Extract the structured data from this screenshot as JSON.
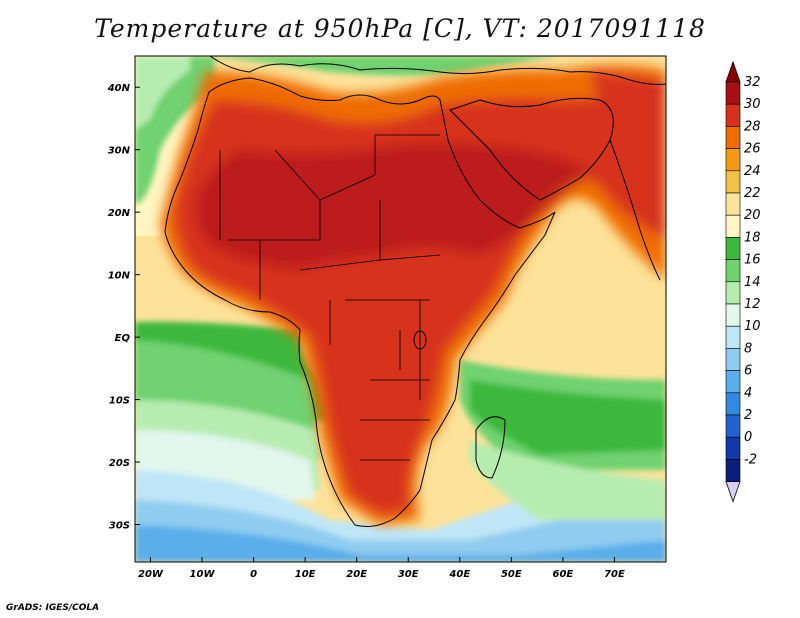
{
  "title": "Temperature at 950hPa [C], VT: 2017091118",
  "credit": "GrADS: IGES/COLA",
  "map": {
    "lon_range": [
      -23,
      80
    ],
    "lat_range": [
      -36,
      45
    ],
    "lon_ticks": [
      {
        "lon": -20,
        "label": "20W"
      },
      {
        "lon": -10,
        "label": "10W"
      },
      {
        "lon": 0,
        "label": "0"
      },
      {
        "lon": 10,
        "label": "10E"
      },
      {
        "lon": 20,
        "label": "20E"
      },
      {
        "lon": 30,
        "label": "30E"
      },
      {
        "lon": 40,
        "label": "40E"
      },
      {
        "lon": 50,
        "label": "50E"
      },
      {
        "lon": 60,
        "label": "60E"
      },
      {
        "lon": 70,
        "label": "70E"
      }
    ],
    "lat_ticks": [
      {
        "lat": 40,
        "label": "40N"
      },
      {
        "lat": 30,
        "label": "30N"
      },
      {
        "lat": 20,
        "label": "20N"
      },
      {
        "lat": 10,
        "label": "10N"
      },
      {
        "lat": 0,
        "label": "EQ"
      },
      {
        "lat": -10,
        "label": "10S"
      },
      {
        "lat": -20,
        "label": "20S"
      },
      {
        "lat": -30,
        "label": "30S"
      }
    ]
  },
  "colorbar": {
    "levels": [
      "32",
      "30",
      "28",
      "26",
      "24",
      "22",
      "20",
      "18",
      "16",
      "14",
      "12",
      "10",
      "8",
      "6",
      "4",
      "2",
      "0",
      "-2"
    ],
    "colors": {
      "c32": "#a50f15",
      "c30": "#d7301f",
      "c28": "#ef6c00",
      "c26": "#f39c12",
      "c24": "#f7c04a",
      "c22": "#fde39a",
      "c20": "#fff6c2",
      "c18": "#3cb83c",
      "c16": "#6fd26f",
      "c14": "#b7ecb0",
      "c12": "#e2f7ee",
      "c10": "#bfe6f7",
      "c8": "#8fccf0",
      "c6": "#5aaeea",
      "c4": "#3389de",
      "c2": "#1f63cf",
      "c0": "#0f3aa8",
      "cm2": "#0a1f7a",
      "ctop": "#8b0000",
      "cbottom": "#d8d0f4"
    }
  }
}
